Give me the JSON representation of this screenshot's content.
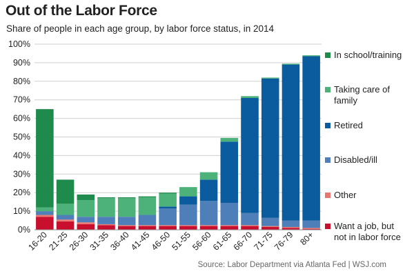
{
  "header": {
    "title": "Out of the Labor Force",
    "subtitle": "Share of people in each age group, by labor force status, in 2014"
  },
  "footer": {
    "source": "Source: Labor Department via Atlanta Fed  |  WSJ.com"
  },
  "chart_data": {
    "type": "bar",
    "stacked": true,
    "title": "Out of the Labor Force",
    "subtitle": "Share of people in each age group, by labor force status, in 2014",
    "xlabel": "",
    "ylabel": "",
    "ylim": [
      0,
      100
    ],
    "yticks": [
      "0%",
      "10%",
      "20%",
      "30%",
      "40%",
      "50%",
      "60%",
      "70%",
      "80%",
      "90%",
      "100%"
    ],
    "grid": true,
    "legend_position": "right",
    "categories": [
      "16-20",
      "21-25",
      "26-30",
      "31-35",
      "36-40",
      "41-45",
      "46-50",
      "51-55",
      "56-60",
      "61-65",
      "66-70",
      "71-75",
      "76-79",
      "80+"
    ],
    "series": [
      {
        "name": "Want a job, but\nnot in labor force",
        "color": "#c8102e",
        "values": [
          7,
          4.5,
          3,
          2.5,
          2,
          2,
          2,
          2,
          2,
          2,
          2,
          1.5,
          1,
          0.5
        ]
      },
      {
        "name": "Other",
        "color": "#e8776f",
        "values": [
          1,
          1,
          1,
          0.5,
          0.5,
          0.5,
          0.5,
          0.5,
          0.5,
          0.5,
          0.5,
          0.5,
          0.5,
          0.5
        ]
      },
      {
        "name": "Disabled/ill",
        "color": "#4f7fb8",
        "values": [
          2,
          2.5,
          3,
          4,
          4.5,
          5.5,
          9,
          11,
          13,
          12,
          6.5,
          4.5,
          3.5,
          4
        ]
      },
      {
        "name": "Retired",
        "color": "#0b5c9e",
        "values": [
          0,
          0,
          0,
          0,
          0,
          0,
          1,
          4.5,
          11.5,
          33,
          62,
          75,
          84,
          88.5
        ]
      },
      {
        "name": "Taking care of\nfamily",
        "color": "#4db27a",
        "values": [
          2,
          6,
          9,
          10,
          10,
          9.5,
          7,
          5,
          4,
          2,
          1,
          0.5,
          0.5,
          0.5
        ]
      },
      {
        "name": "In school/training",
        "color": "#1e8a4c",
        "values": [
          53,
          13,
          3,
          0.5,
          0.5,
          0.5,
          0.5,
          0,
          0,
          0,
          0,
          0,
          0,
          0
        ]
      }
    ]
  }
}
